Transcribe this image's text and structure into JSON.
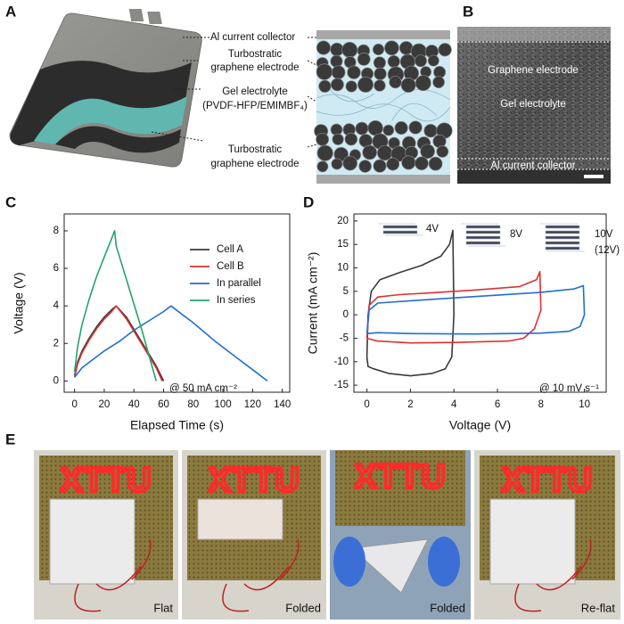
{
  "panels": {
    "A": {
      "letter": "A",
      "labels": [
        [
          "Al current collector"
        ],
        [
          "Turbostratic",
          "graphene electrode"
        ],
        [
          "Gel electrolyte",
          "(PVDF-HFP/EMIMBF₄)"
        ],
        [
          "Turbostratic",
          "graphene electrode"
        ]
      ]
    },
    "B": {
      "letter": "B",
      "labels": [
        "Graphene electrode",
        "Gel electrolyte",
        "Al current collector"
      ]
    },
    "C": {
      "letter": "C"
    },
    "D": {
      "letter": "D"
    },
    "E": {
      "letter": "E",
      "led_text": "XTTU",
      "captions": [
        "Flat",
        "Folded",
        "Folded",
        "Re-flat"
      ]
    }
  },
  "chart_data": [
    {
      "type": "line",
      "x_label": "Elapsed Time (s)",
      "y_label": "Voltage (V)",
      "xlim": [
        -7,
        145
      ],
      "ylim": [
        -0.6,
        8.9
      ],
      "xticks": [
        0,
        20,
        40,
        60,
        80,
        100,
        120,
        140
      ],
      "yticks": [
        0,
        2,
        4,
        6,
        8
      ],
      "legend": "right",
      "annotations": [
        "@ 50 mA cm⁻²"
      ],
      "series": [
        {
          "name": "Cell A",
          "color": "#3a3a3a",
          "x": [
            0,
            2,
            5,
            10,
            15,
            20,
            25,
            28,
            35,
            45,
            55,
            60
          ],
          "values": [
            0.3,
            1.0,
            1.6,
            2.3,
            2.9,
            3.4,
            3.8,
            4.0,
            3.4,
            2.1,
            0.8,
            0.0
          ]
        },
        {
          "name": "Cell B",
          "color": "#e03030",
          "x": [
            0,
            2,
            5,
            10,
            15,
            20,
            25,
            28,
            35,
            45,
            55,
            59
          ],
          "values": [
            0.2,
            0.9,
            1.5,
            2.2,
            2.8,
            3.3,
            3.7,
            4.0,
            3.3,
            2.0,
            0.7,
            0.0
          ]
        },
        {
          "name": "In parallel",
          "color": "#1f6fd0",
          "x": [
            0,
            5,
            10,
            20,
            30,
            40,
            50,
            60,
            65,
            80,
            95,
            110,
            120,
            130
          ],
          "values": [
            0.2,
            0.7,
            1.0,
            1.6,
            2.1,
            2.7,
            3.2,
            3.7,
            4.0,
            3.1,
            2.1,
            1.2,
            0.6,
            0.0
          ]
        },
        {
          "name": "In series",
          "color": "#22a36a",
          "x": [
            0,
            2,
            5,
            10,
            15,
            20,
            25,
            27,
            28,
            35,
            45,
            55
          ],
          "values": [
            0.5,
            1.8,
            3.0,
            4.4,
            5.6,
            6.6,
            7.6,
            8.0,
            7.2,
            5.4,
            2.8,
            0.0
          ]
        }
      ]
    },
    {
      "type": "line",
      "x_label": "Voltage (V)",
      "y_label": "Current (mA cm⁻²)",
      "xlim": [
        -0.6,
        11
      ],
      "ylim": [
        -16.5,
        21.5
      ],
      "xticks": [
        0,
        2,
        4,
        6,
        8,
        10
      ],
      "yticks": [
        -15,
        -10,
        -5,
        0,
        5,
        10,
        15,
        20
      ],
      "annotations": [
        "@ 10 mV s⁻¹",
        "4V",
        "8V",
        "10V",
        "(12V)"
      ],
      "series": [
        {
          "color": "#3a3a3a",
          "x": [
            0,
            0.05,
            0.2,
            0.6,
            1.5,
            2.5,
            3.4,
            3.8,
            3.95,
            4.0,
            3.9,
            3.6,
            3.0,
            2.0,
            1.0,
            0.3,
            0.05,
            0
          ],
          "values": [
            -9,
            0,
            5,
            7.5,
            9,
            10.5,
            12.5,
            15,
            18,
            0,
            -9,
            -11.5,
            -12.5,
            -13,
            -12.5,
            -11.5,
            -11,
            -9
          ]
        },
        {
          "color": "#e03030",
          "x": [
            0,
            0.1,
            0.5,
            1.5,
            3,
            5,
            7,
            7.8,
            7.95,
            8.0,
            7.7,
            7.2,
            6.5,
            4,
            2,
            0.5,
            0
          ],
          "values": [
            -5,
            2,
            3.8,
            4.3,
            4.7,
            5.3,
            6,
            7.5,
            9.2,
            1,
            -3,
            -5,
            -5.6,
            -5.9,
            -6,
            -5.6,
            -5
          ]
        },
        {
          "color": "#1f6fd0",
          "x": [
            0,
            0.1,
            0.5,
            2,
            4,
            6,
            8,
            9.5,
            9.95,
            10.0,
            9.8,
            9.3,
            8,
            5,
            2,
            0.5,
            0
          ],
          "values": [
            -4,
            1,
            2.5,
            3,
            3.6,
            4.2,
            4.8,
            5.5,
            6.2,
            0,
            -2.5,
            -3.5,
            -3.9,
            -4.1,
            -4,
            -3.8,
            -4
          ]
        }
      ]
    }
  ]
}
